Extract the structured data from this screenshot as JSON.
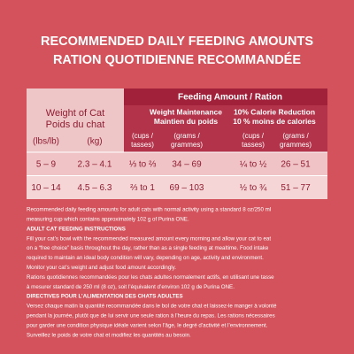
{
  "header": {
    "title": [
      "RECOMMENDED DAILY FEEDING AMOUNTS",
      "RATION QUOTIDIENNE RECOMMANDÉE"
    ]
  },
  "table": {
    "weight_header": [
      "Weight of Cat",
      "Poids du chat"
    ],
    "weight_units": [
      "(lbs/lb)",
      "(kg)"
    ],
    "feeding_header": "Feeding Amount / Ration",
    "groups": [
      {
        "title": [
          "Weight Maintenance",
          "Maintien du poids"
        ],
        "columns": [
          [
            "(cups /",
            "tasses)"
          ],
          [
            "(grams /",
            "grammes)"
          ]
        ]
      },
      {
        "title": [
          "10% Calorie Reduction",
          "10 % moins de calories"
        ],
        "columns": [
          [
            "(cups /",
            "tasses)"
          ],
          [
            "(grams /",
            "grammes)"
          ]
        ]
      }
    ],
    "rows": [
      [
        "5 – 9",
        "2.3 – 4.1",
        "⅓ to ⅔",
        "34 – 69",
        "¼ to ½",
        "26 – 51"
      ],
      [
        "10 – 14",
        "4.5 – 6.3",
        "⅔ to 1",
        "69 – 103",
        "½ to ¾",
        "51 – 77"
      ]
    ]
  },
  "notes": [
    "Recommended daily feeding amounts for adult cats with normal activity using a standard 8 oz/250 ml",
    "measuring cup which contains approximately 102 g of Purina ONE.",
    "ADULT CAT FEEDING INSTRUCTIONS",
    "Fill your cat’s bowl with the recommended measured amount every morning and allow your cat to eat",
    "on a “free choice” basis throughout the day, rather than as a single feeding at mealtime. Food intake",
    "required to maintain an ideal body condition will vary, depending on age, activity and environment.",
    "Monitor your cat’s weight and adjust food amount accordingly.",
    "Rations quotidiennes recommandées pour les chats adultes normalement actifs, en utilisant une tasse",
    "à mesurer standard de 250 ml (8 oz), soit l’équivalent d’environ 102 g de Purina ONE.",
    "DIRECTIVES POUR L’ALIMENTATION DES CHATS ADULTES",
    "Versez chaque matin la quantité recommandée dans le bol de votre chat et laissez-le manger à volonté",
    "pendant la journée, plutôt que de lui servir une seule ration à l’heure du repas. Les rations nécessaires",
    "pour garder une condition physique idéale varient selon l’âge, le degré d’activité et l’environnement.",
    "Surveillez le poids de votre chat et modifiez les quantités au besoin."
  ]
}
